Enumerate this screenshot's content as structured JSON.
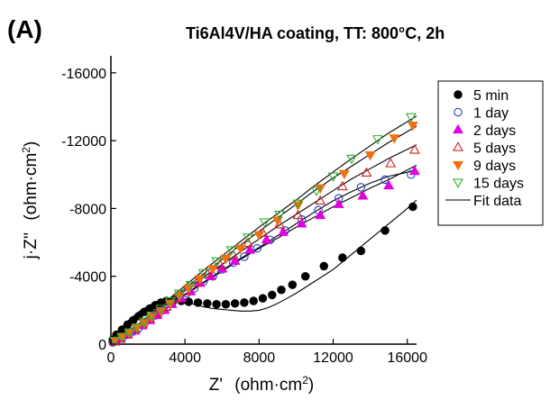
{
  "chart_data": {
    "type": "scatter",
    "panel_label": "(A)",
    "title": "Ti6Al4V/HA coating, TT: 800°C, 2h",
    "xlabel": "Z'",
    "xlabel_unit": "(ohm·cm",
    "xlabel_unit_sup": "2",
    "xlabel_unit_close": ")",
    "ylabel": "j·Z''",
    "ylabel_unit": "(ohm·cm",
    "ylabel_unit_sup": "2",
    "ylabel_unit_close": ")",
    "xlim": [
      0,
      16500
    ],
    "ylim": [
      0,
      -17000
    ],
    "xticks": [
      0,
      4000,
      8000,
      12000,
      16000
    ],
    "xtick_labels": [
      "0",
      "4000",
      "8000",
      "12000",
      "16000"
    ],
    "yticks": [
      0,
      -4000,
      -8000,
      -12000,
      -16000
    ],
    "ytick_labels": [
      "0",
      "-4000",
      "-8000",
      "-12000",
      "-16000"
    ],
    "grid": false,
    "legend_position": "right",
    "series": [
      {
        "name": "5 min",
        "marker": "filled-circle",
        "color": "#000000",
        "points": [
          [
            100,
            -250
          ],
          [
            300,
            -550
          ],
          [
            600,
            -850
          ],
          [
            900,
            -1150
          ],
          [
            1200,
            -1400
          ],
          [
            1500,
            -1650
          ],
          [
            1800,
            -1900
          ],
          [
            2100,
            -2100
          ],
          [
            2400,
            -2300
          ],
          [
            2700,
            -2450
          ],
          [
            3000,
            -2550
          ],
          [
            3400,
            -2600
          ],
          [
            3800,
            -2550
          ],
          [
            4200,
            -2500
          ],
          [
            4700,
            -2450
          ],
          [
            5200,
            -2400
          ],
          [
            5700,
            -2350
          ],
          [
            6200,
            -2350
          ],
          [
            6700,
            -2400
          ],
          [
            7200,
            -2450
          ],
          [
            7700,
            -2550
          ],
          [
            8200,
            -2700
          ],
          [
            8700,
            -2900
          ],
          [
            9200,
            -3200
          ],
          [
            9800,
            -3500
          ],
          [
            10500,
            -4000
          ],
          [
            11500,
            -4600
          ],
          [
            12500,
            -5100
          ],
          [
            13500,
            -5500
          ],
          [
            14800,
            -6700
          ],
          [
            16300,
            -8100
          ]
        ]
      },
      {
        "name": "1 day",
        "marker": "open-circle",
        "color": "#1f3fbf",
        "points": [
          [
            100,
            -100
          ],
          [
            300,
            -200
          ],
          [
            600,
            -350
          ],
          [
            900,
            -550
          ],
          [
            1200,
            -750
          ],
          [
            1500,
            -950
          ],
          [
            1800,
            -1200
          ],
          [
            2100,
            -1450
          ],
          [
            2400,
            -1700
          ],
          [
            2700,
            -1950
          ],
          [
            3000,
            -2150
          ],
          [
            3300,
            -2400
          ],
          [
            3700,
            -2700
          ],
          [
            4100,
            -3000
          ],
          [
            4500,
            -3300
          ],
          [
            5000,
            -3700
          ],
          [
            5500,
            -4000
          ],
          [
            6000,
            -4400
          ],
          [
            6600,
            -4800
          ],
          [
            7200,
            -5150
          ],
          [
            7900,
            -5650
          ],
          [
            8600,
            -6150
          ],
          [
            9400,
            -6700
          ],
          [
            10300,
            -7350
          ],
          [
            11200,
            -7900
          ],
          [
            12300,
            -8600
          ],
          [
            13500,
            -9250
          ],
          [
            14800,
            -9700
          ],
          [
            16200,
            -10000
          ]
        ]
      },
      {
        "name": "2 days",
        "marker": "filled-triangle-up",
        "color": "#e000e0",
        "points": [
          [
            200,
            -150
          ],
          [
            500,
            -300
          ],
          [
            900,
            -550
          ],
          [
            1300,
            -800
          ],
          [
            1700,
            -1100
          ],
          [
            2100,
            -1400
          ],
          [
            2500,
            -1700
          ],
          [
            2900,
            -2000
          ],
          [
            3300,
            -2350
          ],
          [
            3800,
            -2700
          ],
          [
            4300,
            -3100
          ],
          [
            4800,
            -3600
          ],
          [
            5400,
            -4000
          ],
          [
            6000,
            -4450
          ],
          [
            6700,
            -4900
          ],
          [
            7500,
            -5550
          ],
          [
            8400,
            -6150
          ],
          [
            9300,
            -6600
          ],
          [
            10300,
            -7100
          ],
          [
            11300,
            -7600
          ],
          [
            12300,
            -8250
          ],
          [
            13600,
            -8750
          ],
          [
            15000,
            -9350
          ],
          [
            16400,
            -10200
          ]
        ]
      },
      {
        "name": "5 days",
        "marker": "open-triangle-up",
        "color": "#d02020",
        "points": [
          [
            200,
            -150
          ],
          [
            500,
            -350
          ],
          [
            900,
            -600
          ],
          [
            1300,
            -900
          ],
          [
            1700,
            -1200
          ],
          [
            2100,
            -1500
          ],
          [
            2500,
            -1850
          ],
          [
            3000,
            -2200
          ],
          [
            3500,
            -2650
          ],
          [
            4000,
            -3100
          ],
          [
            4600,
            -3600
          ],
          [
            5200,
            -4150
          ],
          [
            5900,
            -4650
          ],
          [
            6600,
            -5250
          ],
          [
            7400,
            -5950
          ],
          [
            8200,
            -6550
          ],
          [
            9100,
            -7050
          ],
          [
            10100,
            -7600
          ],
          [
            11300,
            -8450
          ],
          [
            12500,
            -9300
          ],
          [
            13800,
            -10100
          ],
          [
            15100,
            -10650
          ],
          [
            16400,
            -11450
          ]
        ]
      },
      {
        "name": "9 days",
        "marker": "filled-triangle-down",
        "color": "#f07010",
        "points": [
          [
            200,
            -200
          ],
          [
            600,
            -400
          ],
          [
            1000,
            -650
          ],
          [
            1400,
            -950
          ],
          [
            1800,
            -1250
          ],
          [
            2200,
            -1600
          ],
          [
            2700,
            -1950
          ],
          [
            3200,
            -2400
          ],
          [
            3700,
            -2850
          ],
          [
            4200,
            -3300
          ],
          [
            4800,
            -3850
          ],
          [
            5500,
            -4450
          ],
          [
            6200,
            -5050
          ],
          [
            7000,
            -5650
          ],
          [
            8000,
            -6450
          ],
          [
            9000,
            -7300
          ],
          [
            10100,
            -8200
          ],
          [
            11300,
            -9200
          ],
          [
            12600,
            -10050
          ],
          [
            14000,
            -11150
          ],
          [
            15300,
            -12150
          ],
          [
            16300,
            -12900
          ]
        ]
      },
      {
        "name": "15 days",
        "marker": "open-triangle-down",
        "color": "#30b030",
        "points": [
          [
            200,
            -200
          ],
          [
            600,
            -450
          ],
          [
            1000,
            -700
          ],
          [
            1400,
            -1000
          ],
          [
            1800,
            -1350
          ],
          [
            2200,
            -1700
          ],
          [
            2700,
            -2100
          ],
          [
            3200,
            -2550
          ],
          [
            3700,
            -3000
          ],
          [
            4300,
            -3500
          ],
          [
            5000,
            -4200
          ],
          [
            5700,
            -4900
          ],
          [
            6500,
            -5550
          ],
          [
            7400,
            -6300
          ],
          [
            8300,
            -7200
          ],
          [
            9100,
            -7650
          ],
          [
            10100,
            -8300
          ],
          [
            11100,
            -9050
          ],
          [
            12000,
            -9900
          ],
          [
            13000,
            -10950
          ],
          [
            14400,
            -12100
          ],
          [
            16200,
            -13400
          ]
        ]
      },
      {
        "name": "Fit data",
        "marker": "line",
        "color": "#000000",
        "curves": [
          [
            [
              0,
              -300
            ],
            [
              500,
              -900
            ],
            [
              1000,
              -1450
            ],
            [
              1500,
              -1900
            ],
            [
              2000,
              -2250
            ],
            [
              2500,
              -2500
            ],
            [
              3000,
              -2600
            ],
            [
              3500,
              -2600
            ],
            [
              4000,
              -2500
            ],
            [
              4500,
              -2350
            ],
            [
              5000,
              -2200
            ],
            [
              5500,
              -2100
            ],
            [
              6000,
              -2050
            ],
            [
              6500,
              -2000
            ],
            [
              7000,
              -1950
            ],
            [
              7500,
              -1950
            ],
            [
              8000,
              -2000
            ],
            [
              8500,
              -2150
            ],
            [
              9000,
              -2400
            ],
            [
              9500,
              -2700
            ],
            [
              10000,
              -3000
            ],
            [
              11000,
              -3700
            ],
            [
              12000,
              -4400
            ],
            [
              13000,
              -5300
            ],
            [
              14000,
              -6200
            ],
            [
              15000,
              -7100
            ],
            [
              16000,
              -8000
            ],
            [
              16500,
              -8500
            ]
          ],
          [
            [
              0,
              0
            ],
            [
              1000,
              -500
            ],
            [
              2000,
              -1300
            ],
            [
              3000,
              -2150
            ],
            [
              4000,
              -2950
            ],
            [
              5000,
              -3650
            ],
            [
              6000,
              -4350
            ],
            [
              7000,
              -5050
            ],
            [
              8000,
              -5700
            ],
            [
              9000,
              -6400
            ],
            [
              10000,
              -7100
            ],
            [
              11000,
              -7800
            ],
            [
              12000,
              -8450
            ],
            [
              13000,
              -9000
            ],
            [
              14000,
              -9500
            ],
            [
              15000,
              -9900
            ],
            [
              16500,
              -10250
            ]
          ],
          [
            [
              0,
              0
            ],
            [
              1000,
              -600
            ],
            [
              2000,
              -1350
            ],
            [
              3000,
              -2100
            ],
            [
              4000,
              -2900
            ],
            [
              5000,
              -3600
            ],
            [
              6000,
              -4300
            ],
            [
              7000,
              -5000
            ],
            [
              8000,
              -5650
            ],
            [
              9000,
              -6250
            ],
            [
              10000,
              -6900
            ],
            [
              11000,
              -7500
            ],
            [
              12000,
              -8100
            ],
            [
              13000,
              -8650
            ],
            [
              14000,
              -9200
            ],
            [
              15000,
              -9700
            ],
            [
              16500,
              -10550
            ]
          ],
          [
            [
              0,
              0
            ],
            [
              1000,
              -650
            ],
            [
              2000,
              -1450
            ],
            [
              3000,
              -2300
            ],
            [
              4000,
              -3150
            ],
            [
              5000,
              -3950
            ],
            [
              6000,
              -4700
            ],
            [
              7000,
              -5450
            ],
            [
              8000,
              -6200
            ],
            [
              9000,
              -6950
            ],
            [
              10000,
              -7650
            ],
            [
              11000,
              -8350
            ],
            [
              12000,
              -9050
            ],
            [
              13000,
              -9750
            ],
            [
              14000,
              -10350
            ],
            [
              15000,
              -10950
            ],
            [
              16500,
              -11750
            ]
          ],
          [
            [
              0,
              0
            ],
            [
              1000,
              -700
            ],
            [
              2000,
              -1550
            ],
            [
              3000,
              -2450
            ],
            [
              4000,
              -3300
            ],
            [
              5000,
              -4150
            ],
            [
              6000,
              -5000
            ],
            [
              7000,
              -5850
            ],
            [
              8000,
              -6650
            ],
            [
              9000,
              -7450
            ],
            [
              10000,
              -8250
            ],
            [
              11000,
              -9050
            ],
            [
              12000,
              -9800
            ],
            [
              13000,
              -10500
            ],
            [
              14000,
              -11200
            ],
            [
              15000,
              -11900
            ],
            [
              16500,
              -12850
            ]
          ],
          [
            [
              0,
              0
            ],
            [
              1000,
              -750
            ],
            [
              2000,
              -1650
            ],
            [
              3000,
              -2550
            ],
            [
              4000,
              -3450
            ],
            [
              5000,
              -4350
            ],
            [
              6000,
              -5200
            ],
            [
              7000,
              -6050
            ],
            [
              8000,
              -6900
            ],
            [
              9000,
              -7700
            ],
            [
              10000,
              -8500
            ],
            [
              11000,
              -9350
            ],
            [
              12000,
              -10150
            ],
            [
              13000,
              -10950
            ],
            [
              14000,
              -11700
            ],
            [
              15000,
              -12450
            ],
            [
              16500,
              -13450
            ]
          ]
        ]
      }
    ]
  }
}
